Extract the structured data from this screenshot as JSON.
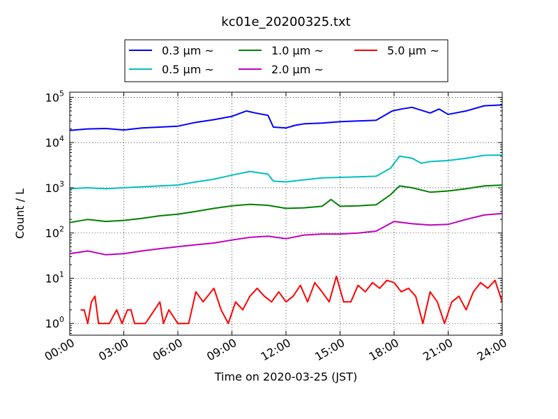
{
  "chart_data": {
    "type": "line",
    "title": "kc01e_20200325.txt",
    "xlabel": "Time on 2020-03-25 (JST)",
    "ylabel": "Count / L",
    "x_ticks": [
      "00:00",
      "03:00",
      "06:00",
      "09:00",
      "12:00",
      "15:00",
      "18:00",
      "21:00",
      "24:00"
    ],
    "x_range_hours": [
      0,
      24
    ],
    "y_scale": "log",
    "y_range": [
      0.55,
      130000
    ],
    "y_ticks": [
      {
        "value": 1,
        "base": "10",
        "exp": "0"
      },
      {
        "value": 10,
        "base": "10",
        "exp": "1"
      },
      {
        "value": 100,
        "base": "10",
        "exp": "2"
      },
      {
        "value": 1000,
        "base": "10",
        "exp": "3"
      },
      {
        "value": 10000,
        "base": "10",
        "exp": "4"
      },
      {
        "value": 100000,
        "base": "10",
        "exp": "5"
      }
    ],
    "grid": true,
    "legend_position": "top-center",
    "series": [
      {
        "name": "0.3 μm  ~",
        "color": "#0000ff",
        "x": [
          0,
          1,
          2,
          3,
          4,
          5,
          6,
          7,
          8,
          9,
          9.8,
          10.3,
          11,
          11.3,
          12,
          12.5,
          13,
          14,
          15,
          16,
          17,
          17.9,
          18.4,
          19,
          20,
          20.5,
          21,
          22,
          23,
          24
        ],
        "y": [
          18500,
          20000,
          20500,
          19000,
          21000,
          22000,
          23000,
          28000,
          32000,
          38000,
          50000,
          45000,
          40000,
          22000,
          21000,
          24000,
          26000,
          27000,
          29000,
          30000,
          31000,
          50000,
          55000,
          60000,
          45000,
          55000,
          42000,
          50000,
          65000,
          68000
        ]
      },
      {
        "name": "0.5 μm  ~",
        "color": "#00bfbf",
        "x": [
          0,
          1,
          2,
          3,
          4,
          5,
          6,
          7,
          8,
          9,
          10,
          11,
          11.3,
          12,
          13,
          14,
          15,
          16,
          17,
          17.8,
          18.3,
          19,
          19.5,
          20,
          21,
          22,
          23,
          24
        ],
        "y": [
          950,
          1000,
          950,
          1000,
          1050,
          1100,
          1150,
          1350,
          1550,
          1900,
          2300,
          2000,
          1400,
          1350,
          1500,
          1650,
          1700,
          1750,
          1800,
          2700,
          5000,
          4500,
          3500,
          3800,
          4000,
          4500,
          5200,
          5300
        ]
      },
      {
        "name": "1.0 μm  ~",
        "color": "#008000",
        "x": [
          0,
          1,
          2,
          3,
          4,
          5,
          6,
          7,
          8,
          9,
          10,
          11,
          12,
          13,
          14,
          14.5,
          15,
          16,
          17,
          17.8,
          18.3,
          19,
          20,
          21,
          22,
          23,
          24
        ],
        "y": [
          170,
          200,
          180,
          190,
          210,
          240,
          260,
          300,
          350,
          400,
          430,
          410,
          350,
          360,
          390,
          550,
          390,
          400,
          420,
          700,
          1100,
          1000,
          800,
          850,
          950,
          1100,
          1150
        ]
      },
      {
        "name": "2.0 μm  ~",
        "color": "#bf00bf",
        "x": [
          0,
          1,
          2,
          3,
          4,
          5,
          6,
          7,
          8,
          9,
          10,
          11,
          12,
          13,
          14,
          15,
          16,
          17,
          18,
          19,
          20,
          21,
          22,
          23,
          24
        ],
        "y": [
          35,
          40,
          33,
          35,
          40,
          45,
          50,
          55,
          60,
          70,
          80,
          85,
          75,
          90,
          95,
          95,
          100,
          110,
          180,
          160,
          150,
          155,
          200,
          250,
          270
        ]
      },
      {
        "name": "5.0 μm  ~",
        "color": "#ff0000",
        "x": [
          0.6,
          0.8,
          1.0,
          1.2,
          1.4,
          1.6,
          1.9,
          2.2,
          2.6,
          2.9,
          3.2,
          3.4,
          3.6,
          4.2,
          5.0,
          5.2,
          5.5,
          6.0,
          6.3,
          6.6,
          7.0,
          7.4,
          8.0,
          8.4,
          8.8,
          9.2,
          9.6,
          10.0,
          10.4,
          10.8,
          11.2,
          11.6,
          12.0,
          12.4,
          12.8,
          13.2,
          13.6,
          14.0,
          14.4,
          14.8,
          15.2,
          15.6,
          16.0,
          16.4,
          16.8,
          17.2,
          17.6,
          18.0,
          18.4,
          18.8,
          19.2,
          19.6,
          20.0,
          20.4,
          20.8,
          21.2,
          21.6,
          22.0,
          22.4,
          22.8,
          23.2,
          23.6,
          24.0
        ],
        "y": [
          2,
          2,
          1,
          3,
          4,
          1,
          1,
          1,
          2,
          1,
          2,
          2,
          1,
          1,
          3,
          1,
          2,
          1,
          1,
          1,
          5,
          3,
          6,
          2,
          1,
          3,
          2,
          4,
          6,
          4,
          3,
          5,
          3,
          4,
          7,
          3,
          8,
          5,
          3,
          11,
          3,
          3,
          7,
          5,
          8,
          6,
          9,
          8,
          5,
          6,
          4,
          1,
          5,
          3,
          1,
          3,
          4,
          2,
          5,
          8,
          6,
          9,
          3
        ]
      }
    ]
  }
}
